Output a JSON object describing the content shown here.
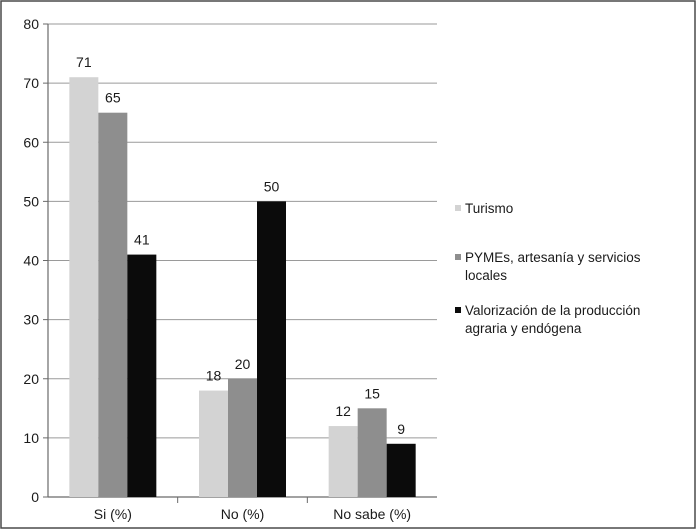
{
  "chart_data": {
    "type": "bar",
    "title": "",
    "xlabel": "",
    "ylabel": "",
    "categories": [
      "Si (%)",
      "No (%)",
      "No sabe (%)"
    ],
    "ylim": [
      0,
      80
    ],
    "yticks": [
      0,
      10,
      20,
      30,
      40,
      50,
      60,
      70,
      80
    ],
    "grid": true,
    "legend_position": "right",
    "series": [
      {
        "name": "Turismo",
        "legend_lines": [
          "Turismo"
        ],
        "color": "#d3d3d3",
        "values": [
          71,
          18,
          12
        ]
      },
      {
        "name": "PYMEs, artesanía y servicios locales",
        "legend_lines": [
          "PYMEs, artesanía y servicios",
          "locales"
        ],
        "color": "#8e8e8e",
        "values": [
          65,
          20,
          15
        ]
      },
      {
        "name": "Valorización de la producción agraria y endógena",
        "legend_lines": [
          "Valorización de la producción",
          "agraria y endógena"
        ],
        "color": "#0b0b0b",
        "values": [
          41,
          50,
          9
        ]
      }
    ]
  }
}
